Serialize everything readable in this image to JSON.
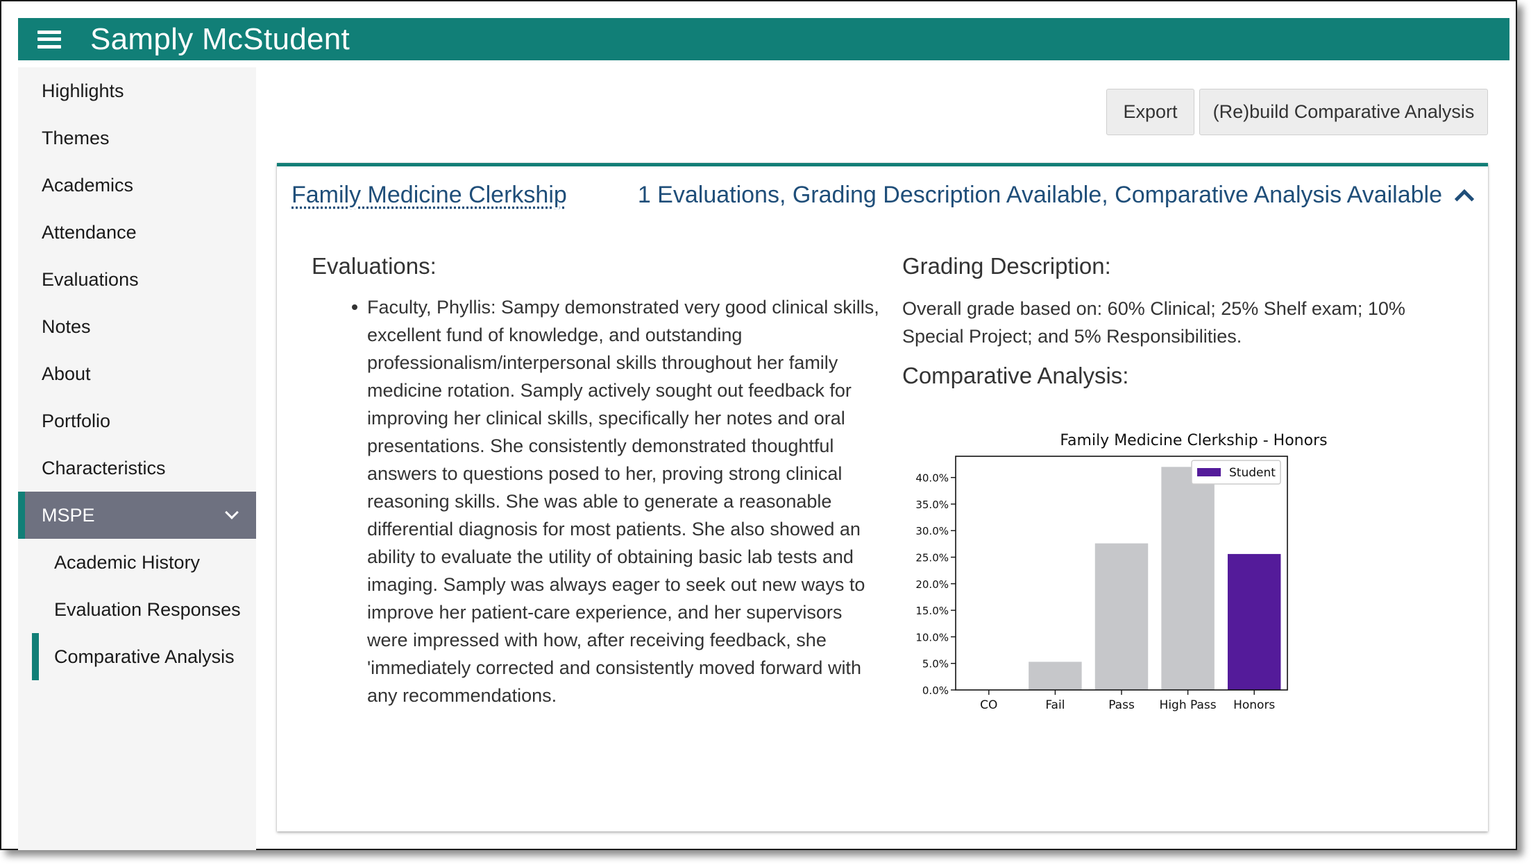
{
  "header": {
    "title": "Samply McStudent",
    "menu_icon": "hamburger-menu-icon"
  },
  "sidebar": {
    "items": [
      {
        "label": "Highlights"
      },
      {
        "label": "Themes"
      },
      {
        "label": "Academics"
      },
      {
        "label": "Attendance"
      },
      {
        "label": "Evaluations"
      },
      {
        "label": "Notes"
      },
      {
        "label": "About"
      },
      {
        "label": "Portfolio"
      },
      {
        "label": "Characteristics"
      }
    ],
    "group": {
      "label": "MSPE",
      "expanded": true
    },
    "subitems": [
      {
        "label": "Academic History"
      },
      {
        "label": "Evaluation Responses"
      },
      {
        "label": "Comparative Analysis",
        "active": true
      }
    ]
  },
  "toolbar": {
    "export_label": "Export",
    "rebuild_label": "(Re)build Comparative Analysis"
  },
  "card": {
    "course": "Family Medicine Clerkship",
    "summary": "1 Evaluations, Grading Description Available, Comparative Analysis Available",
    "evaluations_heading": "Evaluations:",
    "evaluations": [
      "Faculty, Phyllis: Sampy demonstrated very good clinical skills, excellent fund of knowledge, and outstanding professionalism/interpersonal skills throughout her family medicine rotation. Samply actively sought out feedback for improving her clinical skills, specifically her notes and oral presentations. She consistently demonstrated thoughtful answers to questions posed to her, proving strong clinical reasoning skills. She was able to generate a reasonable differential diagnosis for most patients. She also showed an ability to evaluate the utility of obtaining basic lab tests and imaging. Samply was always eager to seek out new ways to improve her patient-care experience, and her supervisors were impressed with how, after receiving feedback, she 'immediately corrected and consistently moved forward with any recommendations."
    ],
    "grading_heading": "Grading Description:",
    "grading_text": "Overall grade based on: 60% Clinical; 25% Shelf exam; 10% Special Project; and 5% Responsibilities.",
    "comparative_heading": "Comparative Analysis:"
  },
  "colors": {
    "accent": "#117f77",
    "link": "#1f4e79",
    "bar_default": "#c6c7ca",
    "bar_student": "#541b9a",
    "group_bg": "#6e7180"
  },
  "chart_data": {
    "type": "bar",
    "title": "Family Medicine Clerkship - Honors",
    "categories": [
      "CO",
      "Fail",
      "Pass",
      "High Pass",
      "Honors"
    ],
    "values": [
      0.0,
      5.3,
      27.6,
      42.0,
      25.6
    ],
    "highlight_index": 4,
    "legend": {
      "label": "Student",
      "position": "top-right"
    },
    "yticks": [
      "0.0%",
      "5.0%",
      "10.0%",
      "15.0%",
      "20.0%",
      "25.0%",
      "30.0%",
      "35.0%",
      "40.0%"
    ],
    "ylim": [
      0,
      44
    ],
    "xlabel": "",
    "ylabel": "",
    "grid": false
  }
}
